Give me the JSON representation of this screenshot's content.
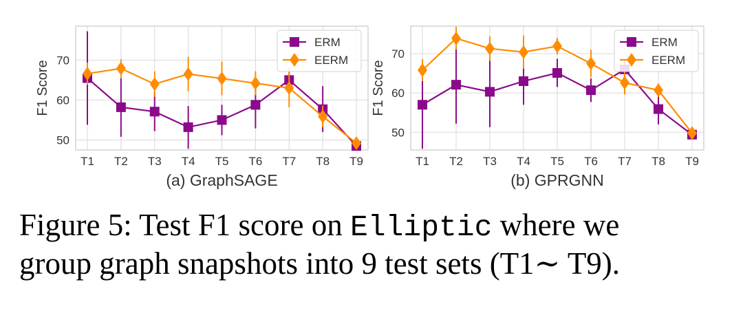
{
  "colors": {
    "erm": "#8b0a8b",
    "eerm": "#ff8c00",
    "grid": "#d8d8d8",
    "axis": "#c9c9c9"
  },
  "chart_data": [
    {
      "type": "line",
      "subtitle": "(a) GraphSAGE",
      "xlabel": "",
      "ylabel": "F1 Score",
      "ylim": [
        47.5,
        78.5
      ],
      "yticks": [
        50,
        60,
        70
      ],
      "categories": [
        "T1",
        "T2",
        "T3",
        "T4",
        "T5",
        "T6",
        "T7",
        "T8",
        "T9"
      ],
      "legend_position": "top-right",
      "grid": true,
      "series": [
        {
          "name": "ERM",
          "marker": "square",
          "values": [
            65.5,
            58.2,
            57.1,
            53.2,
            55.0,
            58.8,
            65.0,
            57.7,
            48.5
          ],
          "err_low": [
            53.8,
            50.8,
            52.2,
            47.8,
            51.2,
            52.9,
            62.0,
            52.0,
            47.8
          ],
          "err_high": [
            77.2,
            65.5,
            62.0,
            58.5,
            58.8,
            64.6,
            68.0,
            63.5,
            49.2
          ]
        },
        {
          "name": "EERM",
          "marker": "diamond",
          "values": [
            66.6,
            67.9,
            64.0,
            66.5,
            65.4,
            64.2,
            63.0,
            55.9,
            49.2
          ],
          "err_low": [
            63.8,
            65.6,
            60.8,
            62.2,
            61.2,
            61.2,
            58.2,
            53.2,
            48.0
          ],
          "err_high": [
            69.4,
            70.2,
            67.2,
            70.8,
            69.6,
            67.2,
            67.8,
            58.6,
            50.4
          ]
        }
      ]
    },
    {
      "type": "line",
      "subtitle": "(b) GPRGNN",
      "xlabel": "",
      "ylabel": "F1 Score",
      "ylim": [
        45.5,
        77.0
      ],
      "yticks": [
        50,
        60,
        70
      ],
      "categories": [
        "T1",
        "T2",
        "T3",
        "T4",
        "T5",
        "T6",
        "T7",
        "T8",
        "T9"
      ],
      "legend_position": "top-right",
      "grid": true,
      "series": [
        {
          "name": "ERM",
          "marker": "square",
          "values": [
            57.0,
            62.1,
            60.3,
            63.0,
            65.1,
            60.7,
            66.0,
            55.9,
            49.4
          ],
          "err_low": [
            45.8,
            52.2,
            51.3,
            57.0,
            61.5,
            57.7,
            63.5,
            52.0,
            48.6
          ],
          "err_high": [
            68.2,
            72.0,
            69.3,
            69.0,
            68.7,
            63.7,
            68.5,
            59.8,
            50.2
          ]
        },
        {
          "name": "EERM",
          "marker": "diamond",
          "values": [
            65.8,
            73.9,
            71.3,
            70.4,
            71.9,
            67.5,
            62.6,
            60.7,
            49.8
          ],
          "err_low": [
            63.0,
            71.0,
            68.2,
            66.2,
            69.8,
            64.0,
            59.6,
            59.0,
            48.6
          ],
          "err_high": [
            68.6,
            76.8,
            74.4,
            74.6,
            74.0,
            71.0,
            65.6,
            62.4,
            51.0
          ]
        }
      ]
    }
  ],
  "caption": {
    "prefix": "Figure 5: Test F1 score on ",
    "dataset": "Elliptic",
    "suffix_line1": " where we",
    "line2": "group graph snapshots into 9 test sets (T1∼ T9)."
  }
}
